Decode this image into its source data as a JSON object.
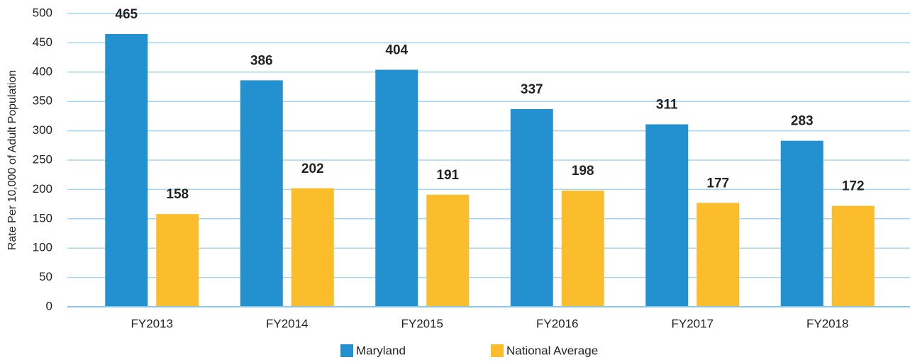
{
  "chart_data": {
    "type": "bar",
    "y_axis_label": "Rate Per 10,000 of Adult Population",
    "categories": [
      "FY2013",
      "FY2014",
      "FY2015",
      "FY2016",
      "FY2017",
      "FY2018"
    ],
    "series": [
      {
        "name": "Maryland",
        "color": "#2391d0",
        "values": [
          465,
          386,
          404,
          337,
          311,
          283
        ]
      },
      {
        "name": "National Average",
        "color": "#fbbd2c",
        "values": [
          158,
          202,
          191,
          198,
          177,
          172
        ]
      }
    ],
    "ylim": [
      0,
      500
    ],
    "yticks": [
      0,
      50,
      100,
      150,
      200,
      250,
      300,
      350,
      400,
      450,
      500
    ],
    "grid": true,
    "legend": "bottom"
  }
}
